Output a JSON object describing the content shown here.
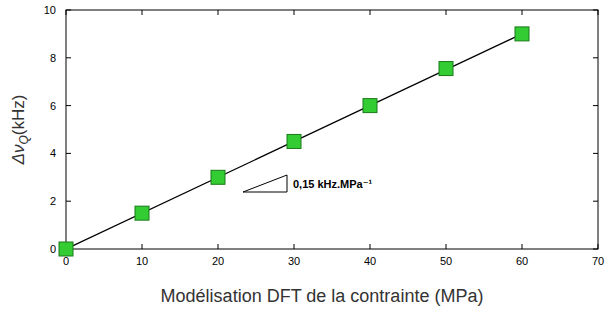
{
  "chart_data": {
    "type": "scatter",
    "x_label": "Modélisation DFT de la contrainte (MPa)",
    "y_label": "ΔνQ(kHz)",
    "annotation": "0,15 kHz.MPa⁻¹",
    "x": [
      0,
      10,
      20,
      30,
      40,
      50,
      60
    ],
    "series": [
      {
        "type": "scatter",
        "marker": "square",
        "color": "#33cc33",
        "values": [
          0,
          1.5,
          3,
          4.5,
          6,
          7.55,
          9
        ]
      },
      {
        "type": "line",
        "line_style": "solid",
        "color": "#000000",
        "x": [
          0,
          60
        ],
        "values": [
          0,
          9
        ]
      }
    ],
    "xlim": [
      0,
      70
    ],
    "xticks": [
      0,
      10,
      20,
      30,
      40,
      50,
      60,
      70
    ],
    "ylim": [
      0,
      10
    ],
    "yticks": [
      0,
      2,
      4,
      6,
      8,
      10
    ],
    "grid": false
  }
}
